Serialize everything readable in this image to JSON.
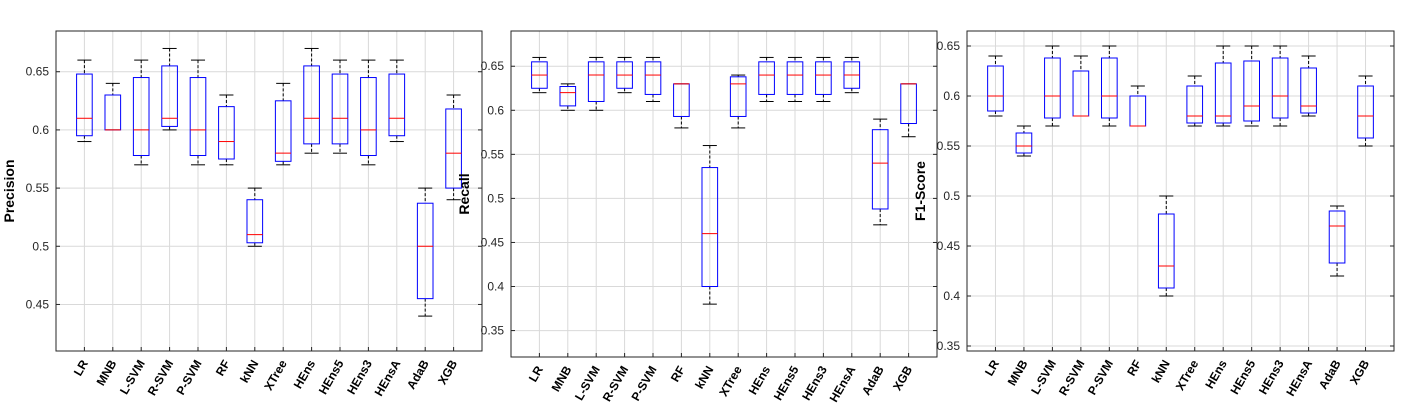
{
  "colors": {
    "box": "#0000ff",
    "median": "#ff0000",
    "whisker": "#000000",
    "grid": "#d9d9d9",
    "axis": "#262626"
  },
  "chart_data": [
    {
      "type": "box",
      "ylabel": "Precision",
      "ylim": [
        0.41,
        0.685
      ],
      "yticks": [
        0.45,
        0.5,
        0.55,
        0.6,
        0.65
      ],
      "grid": true,
      "categories": [
        "LR",
        "MNB",
        "L-SVM",
        "R-SVM",
        "P-SVM",
        "RF",
        "kNN",
        "XTree",
        "HEns",
        "HEns5",
        "HEns3",
        "HEnsA",
        "AdaB",
        "XGB"
      ],
      "boxes": [
        {
          "min": 0.59,
          "q1": 0.595,
          "median": 0.61,
          "q3": 0.648,
          "max": 0.66
        },
        {
          "min": 0.6,
          "q1": 0.6,
          "median": 0.6,
          "q3": 0.63,
          "max": 0.64
        },
        {
          "min": 0.57,
          "q1": 0.578,
          "median": 0.6,
          "q3": 0.645,
          "max": 0.66
        },
        {
          "min": 0.6,
          "q1": 0.603,
          "median": 0.61,
          "q3": 0.655,
          "max": 0.67
        },
        {
          "min": 0.57,
          "q1": 0.578,
          "median": 0.6,
          "q3": 0.645,
          "max": 0.66
        },
        {
          "min": 0.57,
          "q1": 0.575,
          "median": 0.59,
          "q3": 0.62,
          "max": 0.63
        },
        {
          "min": 0.5,
          "q1": 0.503,
          "median": 0.51,
          "q3": 0.54,
          "max": 0.55
        },
        {
          "min": 0.57,
          "q1": 0.573,
          "median": 0.58,
          "q3": 0.625,
          "max": 0.64
        },
        {
          "min": 0.58,
          "q1": 0.588,
          "median": 0.61,
          "q3": 0.655,
          "max": 0.67
        },
        {
          "min": 0.58,
          "q1": 0.588,
          "median": 0.61,
          "q3": 0.648,
          "max": 0.66
        },
        {
          "min": 0.57,
          "q1": 0.578,
          "median": 0.6,
          "q3": 0.645,
          "max": 0.66
        },
        {
          "min": 0.59,
          "q1": 0.595,
          "median": 0.61,
          "q3": 0.648,
          "max": 0.66
        },
        {
          "min": 0.44,
          "q1": 0.455,
          "median": 0.5,
          "q3": 0.537,
          "max": 0.55
        },
        {
          "min": 0.54,
          "q1": 0.55,
          "median": 0.58,
          "q3": 0.618,
          "max": 0.63
        }
      ]
    },
    {
      "type": "box",
      "ylabel": "Recall",
      "ylim": [
        0.32,
        0.69
      ],
      "yticks": [
        0.35,
        0.4,
        0.45,
        0.5,
        0.55,
        0.6,
        0.65
      ],
      "grid": true,
      "categories": [
        "LR",
        "MNB",
        "L-SVM",
        "R-SVM",
        "P-SVM",
        "RF",
        "kNN",
        "XTree",
        "HEns",
        "HEns5",
        "HEns3",
        "HEnsA",
        "AdaB",
        "XGB"
      ],
      "boxes": [
        {
          "min": 0.62,
          "q1": 0.625,
          "median": 0.64,
          "q3": 0.655,
          "max": 0.66
        },
        {
          "min": 0.6,
          "q1": 0.605,
          "median": 0.62,
          "q3": 0.627,
          "max": 0.63
        },
        {
          "min": 0.6,
          "q1": 0.61,
          "median": 0.64,
          "q3": 0.655,
          "max": 0.66
        },
        {
          "min": 0.62,
          "q1": 0.625,
          "median": 0.64,
          "q3": 0.655,
          "max": 0.66
        },
        {
          "min": 0.61,
          "q1": 0.618,
          "median": 0.64,
          "q3": 0.655,
          "max": 0.66
        },
        {
          "min": 0.58,
          "q1": 0.593,
          "median": 0.63,
          "q3": 0.63,
          "max": 0.63
        },
        {
          "min": 0.38,
          "q1": 0.4,
          "median": 0.46,
          "q3": 0.535,
          "max": 0.56
        },
        {
          "min": 0.58,
          "q1": 0.593,
          "median": 0.63,
          "q3": 0.638,
          "max": 0.64
        },
        {
          "min": 0.61,
          "q1": 0.618,
          "median": 0.64,
          "q3": 0.655,
          "max": 0.66
        },
        {
          "min": 0.61,
          "q1": 0.618,
          "median": 0.64,
          "q3": 0.655,
          "max": 0.66
        },
        {
          "min": 0.61,
          "q1": 0.618,
          "median": 0.64,
          "q3": 0.655,
          "max": 0.66
        },
        {
          "min": 0.62,
          "q1": 0.625,
          "median": 0.64,
          "q3": 0.655,
          "max": 0.66
        },
        {
          "min": 0.47,
          "q1": 0.488,
          "median": 0.54,
          "q3": 0.578,
          "max": 0.59
        },
        {
          "min": 0.57,
          "q1": 0.585,
          "median": 0.63,
          "q3": 0.63,
          "max": 0.63
        }
      ]
    },
    {
      "type": "box",
      "ylabel": "F1-Score",
      "ylim": [
        0.345,
        0.665
      ],
      "yticks": [
        0.35,
        0.4,
        0.45,
        0.5,
        0.55,
        0.6,
        0.65
      ],
      "grid": true,
      "categories": [
        "LR",
        "MNB",
        "L-SVM",
        "R-SVM",
        "P-SVM",
        "RF",
        "kNN",
        "XTree",
        "HEns",
        "HEns5",
        "HEns3",
        "HEnsA",
        "AdaB",
        "XGB"
      ],
      "boxes": [
        {
          "min": 0.58,
          "q1": 0.585,
          "median": 0.6,
          "q3": 0.63,
          "max": 0.64
        },
        {
          "min": 0.54,
          "q1": 0.543,
          "median": 0.55,
          "q3": 0.563,
          "max": 0.57
        },
        {
          "min": 0.57,
          "q1": 0.578,
          "median": 0.6,
          "q3": 0.638,
          "max": 0.65
        },
        {
          "min": 0.58,
          "q1": 0.58,
          "median": 0.58,
          "q3": 0.625,
          "max": 0.64
        },
        {
          "min": 0.57,
          "q1": 0.578,
          "median": 0.6,
          "q3": 0.638,
          "max": 0.65
        },
        {
          "min": 0.57,
          "q1": 0.57,
          "median": 0.57,
          "q3": 0.6,
          "max": 0.61
        },
        {
          "min": 0.4,
          "q1": 0.408,
          "median": 0.43,
          "q3": 0.482,
          "max": 0.5
        },
        {
          "min": 0.57,
          "q1": 0.573,
          "median": 0.58,
          "q3": 0.61,
          "max": 0.62
        },
        {
          "min": 0.57,
          "q1": 0.573,
          "median": 0.58,
          "q3": 0.633,
          "max": 0.65
        },
        {
          "min": 0.57,
          "q1": 0.575,
          "median": 0.59,
          "q3": 0.635,
          "max": 0.65
        },
        {
          "min": 0.57,
          "q1": 0.578,
          "median": 0.6,
          "q3": 0.638,
          "max": 0.65
        },
        {
          "min": 0.58,
          "q1": 0.583,
          "median": 0.59,
          "q3": 0.628,
          "max": 0.64
        },
        {
          "min": 0.42,
          "q1": 0.433,
          "median": 0.47,
          "q3": 0.485,
          "max": 0.49
        },
        {
          "min": 0.55,
          "q1": 0.558,
          "median": 0.58,
          "q3": 0.61,
          "max": 0.62
        }
      ]
    }
  ]
}
